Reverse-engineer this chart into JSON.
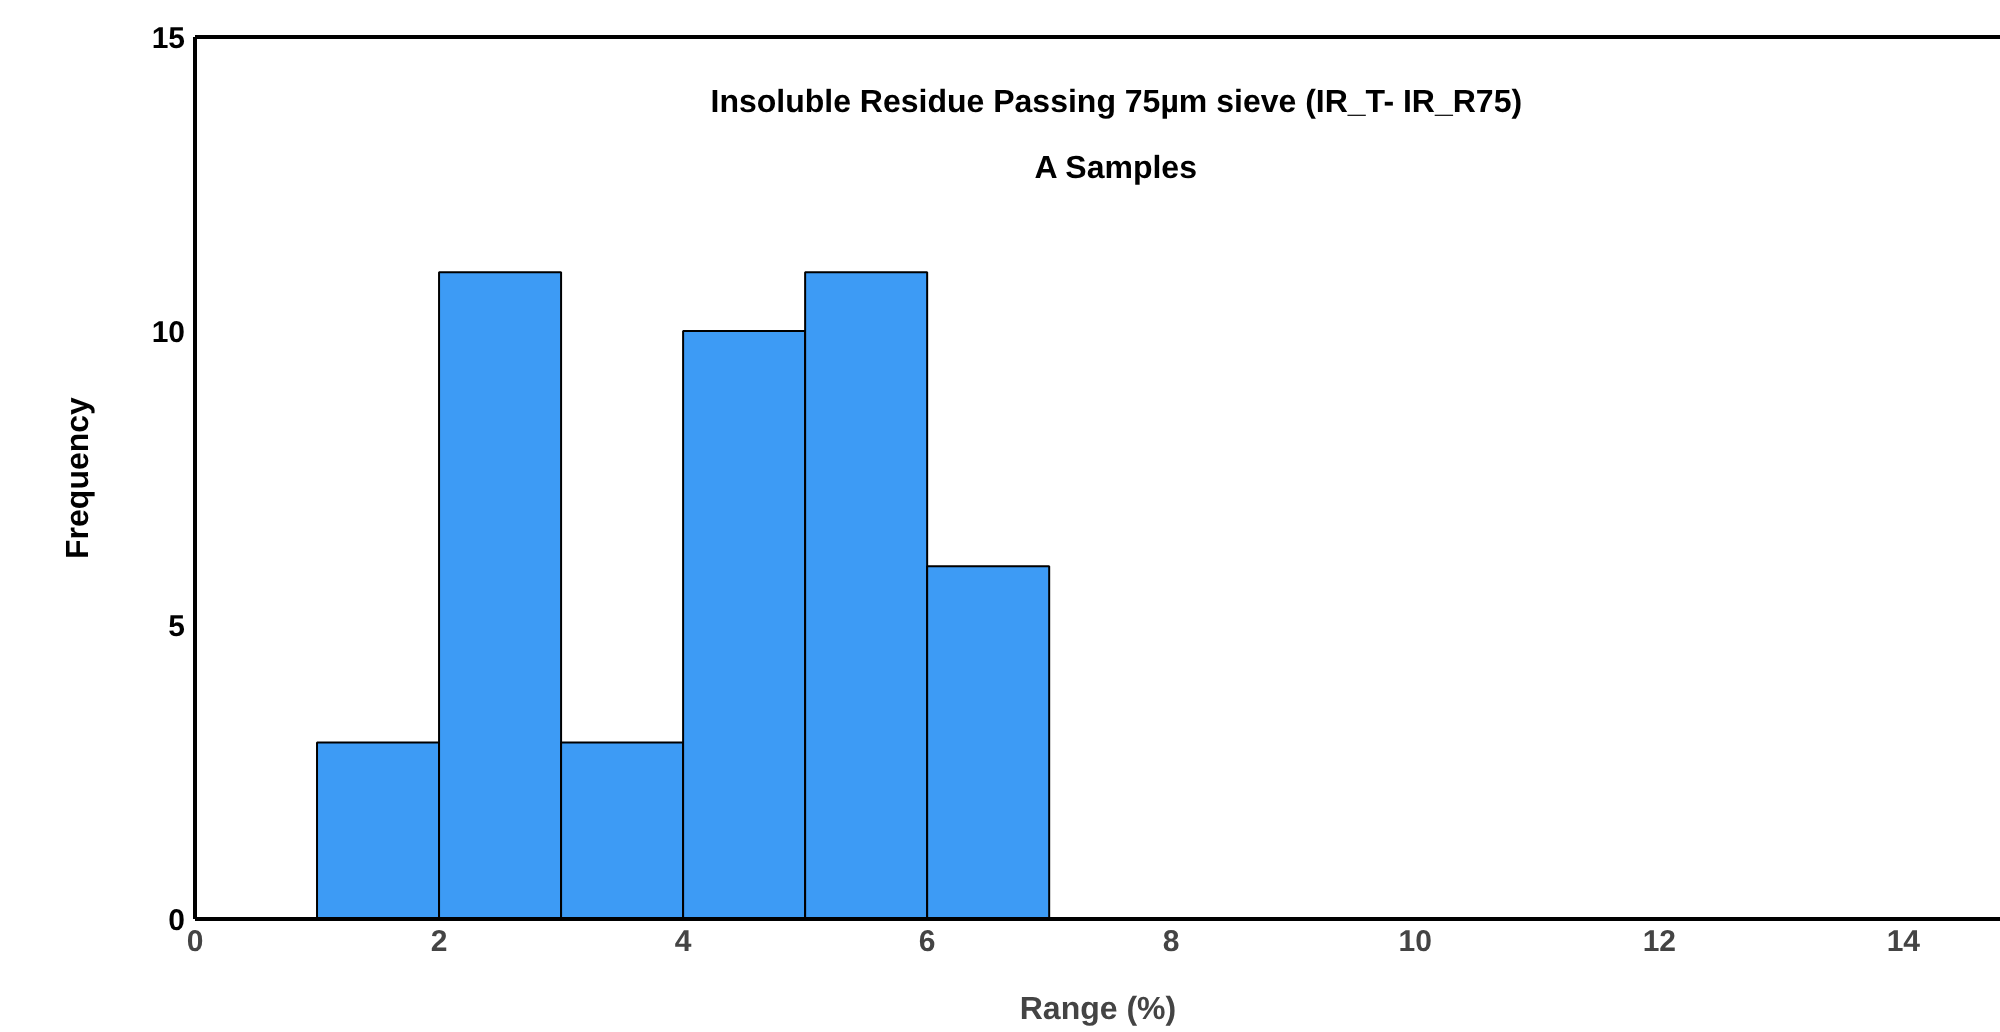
{
  "chart_data": {
    "type": "histogram",
    "title": "Insoluble Residue Passing 75µm sieve (IR_T- IR_R75)",
    "subtitle": "A Samples",
    "xlabel": "Range (%)",
    "ylabel": "Frequency",
    "bins": [
      1,
      2,
      3,
      4,
      5,
      6,
      7
    ],
    "values": [
      3,
      11,
      3,
      10,
      11,
      6
    ],
    "color": "#3d9bf5",
    "xlim": [
      0,
      14.8
    ],
    "xticks": [
      0,
      2,
      4,
      6,
      8,
      10,
      12,
      14
    ],
    "ylim": [
      0,
      15
    ],
    "yticks": [
      0,
      5,
      10,
      15
    ],
    "grid": false
  }
}
